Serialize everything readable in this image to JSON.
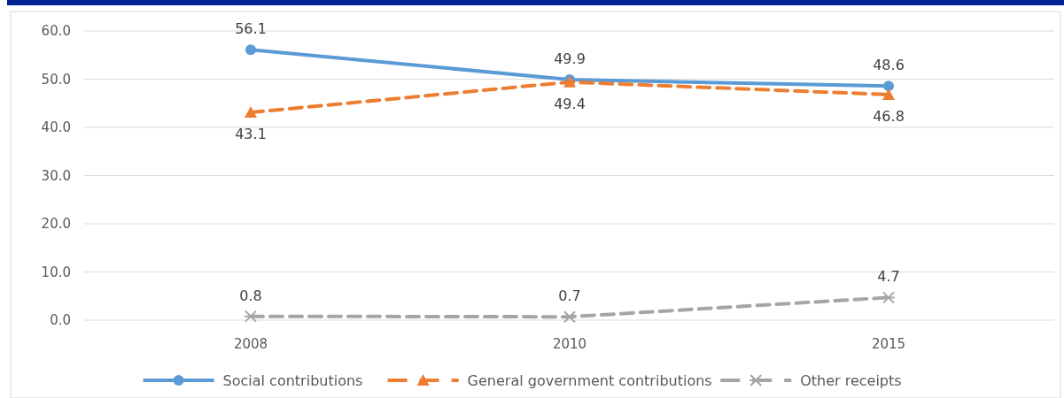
{
  "chart_data": {
    "type": "line",
    "categories": [
      "2008",
      "2010",
      "2015"
    ],
    "series": [
      {
        "name": "Social contributions",
        "color": "#5b9bd5",
        "values": [
          56.1,
          49.9,
          48.6
        ],
        "marker": "circle",
        "line_style": "solid"
      },
      {
        "name": "General government contributions",
        "color": "#ed7d31",
        "values": [
          43.1,
          49.4,
          46.8
        ],
        "marker": "triangle",
        "line_style": "dashed"
      },
      {
        "name": "Other receipts",
        "color": "#a5a5a5",
        "values": [
          0.8,
          0.7,
          4.7
        ],
        "marker": "cross",
        "line_style": "dashed"
      }
    ],
    "ylim": [
      0,
      60
    ],
    "yticks": [
      {
        "value": 0,
        "label": "0.0"
      },
      {
        "value": 10,
        "label": "10.0"
      },
      {
        "value": 20,
        "label": "20.0"
      },
      {
        "value": 30,
        "label": "30.0"
      },
      {
        "value": 40,
        "label": "40.0"
      },
      {
        "value": 50,
        "label": "50.0"
      },
      {
        "value": 60,
        "label": "60.0"
      }
    ],
    "grid": "y",
    "legend": "bottom",
    "data_labels": true
  }
}
